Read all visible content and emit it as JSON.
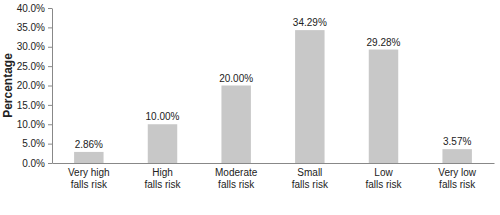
{
  "chart_data": {
    "type": "bar",
    "y_label": "Percentage",
    "categories": [
      "Very high falls risk",
      "High falls risk",
      "Moderate falls risk",
      "Small falls risk",
      "Low falls risk",
      "Very low falls risk"
    ],
    "values": [
      2.86,
      10,
      20,
      34.29,
      29.28,
      3.57
    ],
    "value_labels": [
      "2.86%",
      "10.00%",
      "20.00%",
      "34.29%",
      "29.28%",
      "3.57%"
    ],
    "color": "#c8c8c8",
    "ylim": [
      0,
      40
    ],
    "yticks": [
      {
        "value": 0,
        "label": "0.0%"
      },
      {
        "value": 5,
        "label": "5.0%"
      },
      {
        "value": 10,
        "label": "10.0%"
      },
      {
        "value": 15,
        "label": "15.0%"
      },
      {
        "value": 20,
        "label": "20.0%"
      },
      {
        "value": 25,
        "label": "25.0%"
      },
      {
        "value": 30,
        "label": "30.0%"
      },
      {
        "value": 35,
        "label": "35.0%"
      },
      {
        "value": 40,
        "label": "40.0%"
      }
    ],
    "data_labels": true,
    "grid": false
  }
}
